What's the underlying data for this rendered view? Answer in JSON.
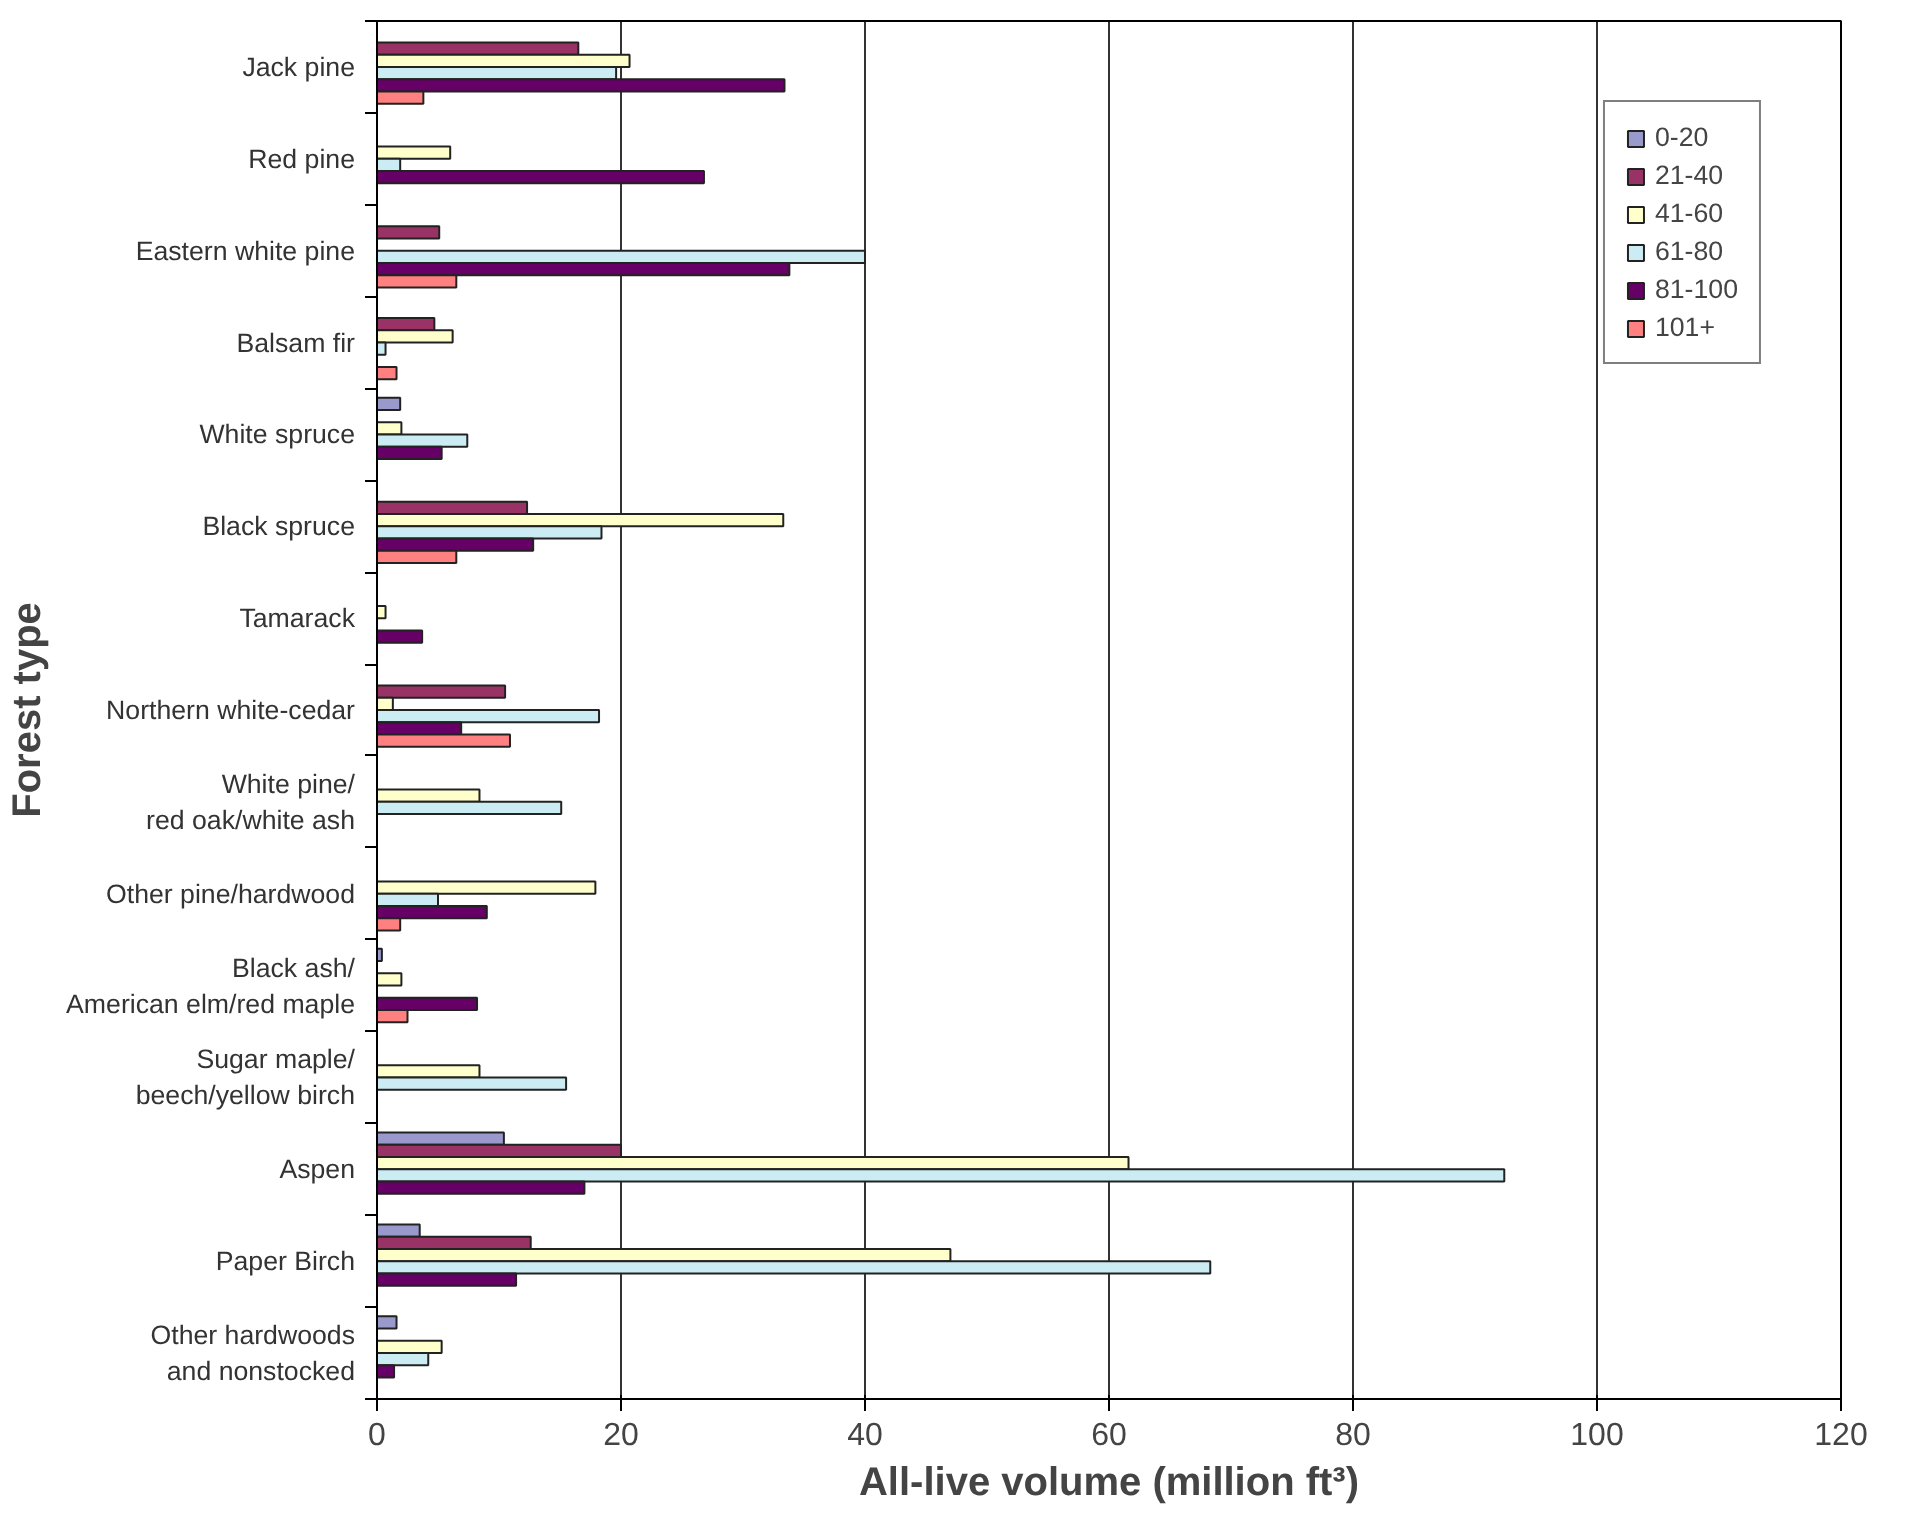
{
  "chart_data": {
    "type": "bar",
    "orientation": "horizontal",
    "xlabel": "All-live volume (million ft³)",
    "ylabel": "Forest type",
    "categories": [
      "Jack pine",
      "Red pine",
      "Eastern white pine",
      "Balsam fir",
      "White spruce",
      "Black spruce",
      "Tamarack",
      "Northern white-cedar",
      "White pine/\nred oak/white ash",
      "Other pine/hardwood",
      "Black ash/\nAmerican elm/red maple",
      "Sugar maple/\nbeech/yellow birch",
      "Aspen",
      "Paper Birch",
      "Other hardwoods\nand nonstocked"
    ],
    "series": [
      {
        "name": "0-20",
        "color": "#9999cc",
        "values": [
          null,
          null,
          null,
          null,
          1.9,
          null,
          null,
          null,
          null,
          null,
          0.4,
          null,
          10.4,
          3.5,
          1.6
        ]
      },
      {
        "name": "21-40",
        "color": "#993366",
        "values": [
          16.5,
          null,
          5.1,
          4.7,
          null,
          12.3,
          null,
          10.5,
          null,
          null,
          null,
          null,
          20.0,
          12.6,
          null
        ]
      },
      {
        "name": "41-60",
        "color": "#ffffcc",
        "values": [
          20.7,
          6.0,
          null,
          6.2,
          2.0,
          33.3,
          0.7,
          1.3,
          8.4,
          17.9,
          2.0,
          8.4,
          61.6,
          47.0,
          5.3
        ]
      },
      {
        "name": "61-80",
        "color": "#ccecf4",
        "values": [
          19.6,
          1.9,
          40.0,
          0.7,
          7.4,
          18.4,
          null,
          18.2,
          15.1,
          5.0,
          null,
          15.5,
          92.4,
          68.3,
          4.2
        ]
      },
      {
        "name": "81-100",
        "color": "#660066",
        "values": [
          33.4,
          26.8,
          33.8,
          null,
          5.3,
          12.8,
          3.7,
          6.9,
          null,
          9.0,
          8.2,
          null,
          17.0,
          11.4,
          1.4
        ]
      },
      {
        "name": "101+",
        "color": "#ff8080",
        "values": [
          3.8,
          null,
          6.5,
          1.6,
          null,
          6.5,
          null,
          10.9,
          null,
          1.9,
          2.5,
          null,
          null,
          null,
          null
        ]
      }
    ],
    "xlim": [
      0,
      120
    ],
    "xticks": [
      0,
      20,
      40,
      60,
      80,
      100,
      120
    ],
    "grid": "x",
    "legend": "top right"
  }
}
